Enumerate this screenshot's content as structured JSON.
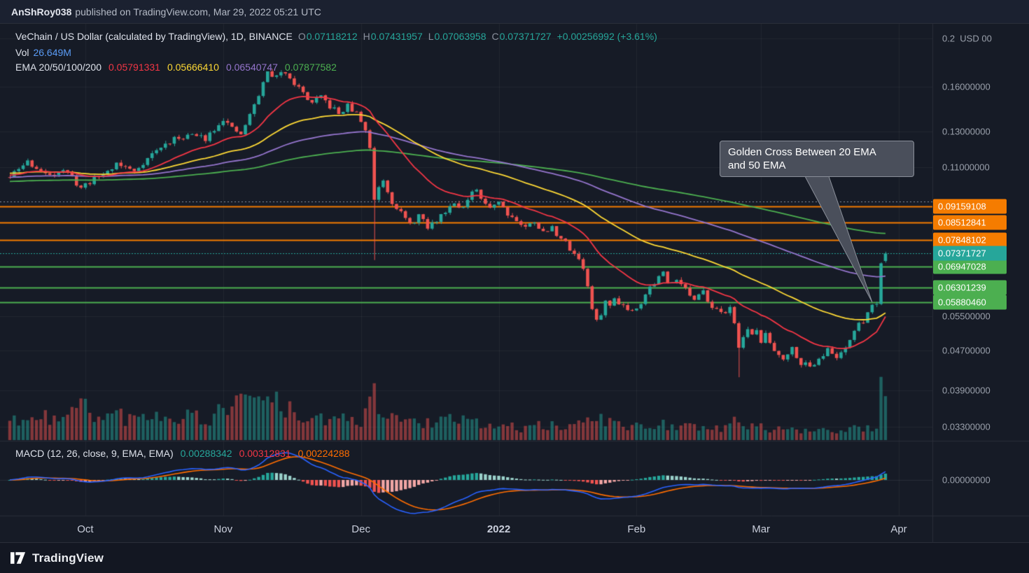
{
  "publish_bar": {
    "author": "AnShRoy038",
    "text": "published on TradingView.com, Mar 29, 2022 05:21 UTC"
  },
  "header": {
    "symbol_line": {
      "title": "VeChain / US Dollar (calculated by TradingView), 1D, BINANCE",
      "o_label": "O",
      "o": "0.07118212",
      "h_label": "H",
      "h": "0.07431957",
      "l_label": "L",
      "l": "0.07063958",
      "c_label": "C",
      "c": "0.07371727",
      "change": "+0.00256992 (+3.61%)"
    },
    "vol_line": {
      "label": "Vol",
      "value": "26.649M"
    },
    "ema_line": {
      "label": "EMA 20/50/100/200",
      "v20": "0.05791331",
      "v50": "0.05666410",
      "v100": "0.06540747",
      "v200": "0.07877582"
    }
  },
  "macd_header": {
    "label": "MACD (12, 26, close, 9, EMA, EMA)",
    "v1": "0.00288342",
    "v2": "0.00312831",
    "v3": "0.00224288"
  },
  "annotation": {
    "line1": "Golden Cross Between 20 EMA",
    "line2": "and 50 EMA"
  },
  "price_axis": {
    "labels": [
      {
        "price": 0.2,
        "text": "0.2  USD 00"
      },
      {
        "price": 0.16,
        "text": "0.16000000"
      },
      {
        "price": 0.13,
        "text": "0.13000000"
      },
      {
        "price": 0.11,
        "text": "0.11000000"
      },
      {
        "price": 0.055,
        "text": "0.05500000"
      },
      {
        "price": 0.047,
        "text": "0.04700000"
      },
      {
        "price": 0.039,
        "text": "0.03900000"
      },
      {
        "price": 0.033,
        "text": "0.03300000"
      }
    ],
    "badges": [
      {
        "price": 0.09159108,
        "text": "0.09159108",
        "bg": "#f57c00"
      },
      {
        "price": 0.08512841,
        "text": "0.08512841",
        "bg": "#f57c00"
      },
      {
        "price": 0.07848102,
        "text": "0.07848102",
        "bg": "#f57c00"
      },
      {
        "price": 0.07371727,
        "text": "0.07371727",
        "bg": "#26a69a",
        "current": true
      },
      {
        "price": 0.06947028,
        "text": "0.06947028",
        "bg": "#4caf50"
      },
      {
        "price": 0.06301239,
        "text": "0.06301239",
        "bg": "#4caf50"
      },
      {
        "price": 0.0588046,
        "text": "0.05880460",
        "bg": "#4caf50"
      }
    ],
    "macd_zero": "0.00000000"
  },
  "time_axis": [
    {
      "label": "Oct",
      "day": 17
    },
    {
      "label": "Nov",
      "day": 48
    },
    {
      "label": "Dec",
      "day": 79
    },
    {
      "label": "2022",
      "day": 110,
      "bold": true
    },
    {
      "label": "Feb",
      "day": 141
    },
    {
      "label": "Mar",
      "day": 169
    },
    {
      "label": "Apr",
      "day": 200
    }
  ],
  "footer": {
    "brand": "TradingView"
  },
  "colors": {
    "bg": "#161b26",
    "publish_bg": "#1b2130",
    "footer_bg": "#131722",
    "panel_border": "#2a2e39",
    "text_bright": "#dde1ea",
    "text_dim": "#8b919e",
    "up": "#26a69a",
    "down": "#ef5350",
    "vol_up": "rgba(38,166,154,0.5)",
    "vol_down": "rgba(239,83,80,0.5)",
    "vol_value": "#5b9cf6",
    "ema20": "#f23645",
    "ema50": "#fdd835",
    "ema100": "#9575cd",
    "ema200": "#4caf50",
    "macd_line": "#2962ff",
    "macd_signal": "#ff6d00",
    "hist_up": "#26a69a",
    "hist_up_fade": "#9bd2cb",
    "hist_dn": "#ef5350",
    "hist_dn_fade": "#f2a6a5",
    "badge_orange": "#f57c00",
    "badge_teal": "#26a69a",
    "badge_green": "#4caf50",
    "callout_bg": "#4a4f5b",
    "callout_border": "#8a8f99"
  },
  "chart_data": {
    "type": "candlestick",
    "scale": "log",
    "ylim": [
      0.0312,
      0.21
    ],
    "days": 198,
    "seed": 11,
    "price_anchors": [
      [
        0,
        0.105
      ],
      [
        4,
        0.113
      ],
      [
        8,
        0.106
      ],
      [
        12,
        0.109
      ],
      [
        16,
        0.1
      ],
      [
        18,
        0.103
      ],
      [
        22,
        0.108
      ],
      [
        24,
        0.112
      ],
      [
        28,
        0.108
      ],
      [
        32,
        0.117
      ],
      [
        36,
        0.124
      ],
      [
        40,
        0.128
      ],
      [
        44,
        0.126
      ],
      [
        48,
        0.138
      ],
      [
        50,
        0.131
      ],
      [
        52,
        0.128
      ],
      [
        54,
        0.14
      ],
      [
        56,
        0.154
      ],
      [
        58,
        0.171
      ],
      [
        60,
        0.167
      ],
      [
        62,
        0.172
      ],
      [
        64,
        0.163
      ],
      [
        66,
        0.155
      ],
      [
        68,
        0.148
      ],
      [
        70,
        0.152
      ],
      [
        72,
        0.146
      ],
      [
        74,
        0.141
      ],
      [
        76,
        0.146
      ],
      [
        78,
        0.141
      ],
      [
        80,
        0.131
      ],
      [
        81,
        0.12
      ],
      [
        82,
        0.095
      ],
      [
        83,
        0.101
      ],
      [
        84,
        0.104
      ],
      [
        85,
        0.099
      ],
      [
        86,
        0.094
      ],
      [
        88,
        0.089
      ],
      [
        90,
        0.084
      ],
      [
        92,
        0.088
      ],
      [
        94,
        0.083
      ],
      [
        96,
        0.086
      ],
      [
        98,
        0.09
      ],
      [
        100,
        0.094
      ],
      [
        102,
        0.091
      ],
      [
        104,
        0.097
      ],
      [
        105,
        0.099
      ],
      [
        106,
        0.094
      ],
      [
        108,
        0.092
      ],
      [
        110,
        0.094
      ],
      [
        112,
        0.089
      ],
      [
        114,
        0.086
      ],
      [
        116,
        0.083
      ],
      [
        118,
        0.086
      ],
      [
        120,
        0.081
      ],
      [
        122,
        0.083
      ],
      [
        124,
        0.079
      ],
      [
        126,
        0.0755
      ],
      [
        128,
        0.072
      ],
      [
        129,
        0.069
      ],
      [
        130,
        0.063
      ],
      [
        131,
        0.057
      ],
      [
        132,
        0.0535
      ],
      [
        133,
        0.056
      ],
      [
        134,
        0.059
      ],
      [
        135,
        0.0575
      ],
      [
        136,
        0.06
      ],
      [
        138,
        0.058
      ],
      [
        140,
        0.0565
      ],
      [
        142,
        0.059
      ],
      [
        144,
        0.063
      ],
      [
        146,
        0.066
      ],
      [
        147,
        0.0675
      ],
      [
        148,
        0.064
      ],
      [
        150,
        0.066
      ],
      [
        152,
        0.0625
      ],
      [
        154,
        0.059
      ],
      [
        156,
        0.0615
      ],
      [
        158,
        0.058
      ],
      [
        160,
        0.0555
      ],
      [
        162,
        0.0575
      ],
      [
        163,
        0.054
      ],
      [
        164,
        0.047
      ],
      [
        165,
        0.0505
      ],
      [
        166,
        0.052
      ],
      [
        167,
        0.05
      ],
      [
        168,
        0.0515
      ],
      [
        169,
        0.049
      ],
      [
        170,
        0.0505
      ],
      [
        172,
        0.047
      ],
      [
        174,
        0.0455
      ],
      [
        176,
        0.0475
      ],
      [
        178,
        0.0445
      ],
      [
        180,
        0.0435
      ],
      [
        182,
        0.0455
      ],
      [
        184,
        0.047
      ],
      [
        186,
        0.0455
      ],
      [
        188,
        0.048
      ],
      [
        190,
        0.0515
      ],
      [
        192,
        0.054
      ],
      [
        193,
        0.0565
      ],
      [
        194,
        0.058
      ],
      [
        195,
        0.0585
      ],
      [
        196,
        0.0712
      ],
      [
        197,
        0.0737
      ]
    ],
    "wick_overrides": [
      {
        "day": 82,
        "low": 0.0715
      },
      {
        "day": 164,
        "low": 0.0415
      }
    ],
    "last_candle": {
      "open": 0.07118212,
      "high": 0.07431957,
      "low": 0.07063958,
      "close": 0.07371727
    },
    "last_volume": "26.649M",
    "volume_anchors": [
      [
        0,
        52
      ],
      [
        4,
        38
      ],
      [
        8,
        46
      ],
      [
        12,
        40
      ],
      [
        16,
        75
      ],
      [
        17,
        95
      ],
      [
        19,
        40
      ],
      [
        24,
        55
      ],
      [
        28,
        42
      ],
      [
        32,
        60
      ],
      [
        36,
        48
      ],
      [
        40,
        52
      ],
      [
        44,
        45
      ],
      [
        48,
        58
      ],
      [
        52,
        105
      ],
      [
        54,
        85
      ],
      [
        56,
        92
      ],
      [
        58,
        88
      ],
      [
        60,
        72
      ],
      [
        63,
        60
      ],
      [
        66,
        48
      ],
      [
        70,
        40
      ],
      [
        74,
        42
      ],
      [
        78,
        36
      ],
      [
        80,
        48
      ],
      [
        82,
        128
      ],
      [
        83,
        80
      ],
      [
        85,
        52
      ],
      [
        88,
        42
      ],
      [
        92,
        38
      ],
      [
        96,
        35
      ],
      [
        100,
        40
      ],
      [
        104,
        36
      ],
      [
        108,
        30
      ],
      [
        112,
        28
      ],
      [
        116,
        26
      ],
      [
        120,
        30
      ],
      [
        124,
        26
      ],
      [
        128,
        30
      ],
      [
        130,
        55
      ],
      [
        132,
        62
      ],
      [
        134,
        40
      ],
      [
        138,
        30
      ],
      [
        141,
        26
      ],
      [
        144,
        30
      ],
      [
        147,
        36
      ],
      [
        150,
        30
      ],
      [
        154,
        24
      ],
      [
        158,
        22
      ],
      [
        161,
        26
      ],
      [
        164,
        44
      ],
      [
        166,
        34
      ],
      [
        168,
        26
      ],
      [
        172,
        22
      ],
      [
        176,
        20
      ],
      [
        180,
        24
      ],
      [
        184,
        22
      ],
      [
        188,
        24
      ],
      [
        191,
        26
      ],
      [
        194,
        28
      ],
      [
        195,
        30
      ],
      [
        196,
        138
      ],
      [
        197,
        92
      ]
    ],
    "ema_periods": [
      20,
      50,
      100,
      200
    ],
    "ema_seeds": [
      0.106,
      0.107,
      0.105,
      0.103
    ],
    "macd_params": [
      12,
      26,
      9
    ],
    "hlines": [
      {
        "price": 0.09159108,
        "color": "#f57c00",
        "width": 2
      },
      {
        "price": 0.08512841,
        "color": "#f57c00",
        "width": 2
      },
      {
        "price": 0.07848102,
        "color": "#f57c00",
        "width": 2
      },
      {
        "price": 0.06947028,
        "color": "#4caf50",
        "width": 2
      },
      {
        "price": 0.06301239,
        "color": "#4caf50",
        "width": 2
      },
      {
        "price": 0.0588046,
        "color": "#4caf50",
        "width": 2
      },
      {
        "price": 0.0937,
        "color": "#8a93a3",
        "width": 1,
        "dash": true
      }
    ],
    "current_price": 0.07371727,
    "grid_prices": [
      0.2,
      0.16,
      0.13,
      0.11,
      0.055,
      0.047,
      0.039,
      0.033
    ]
  }
}
